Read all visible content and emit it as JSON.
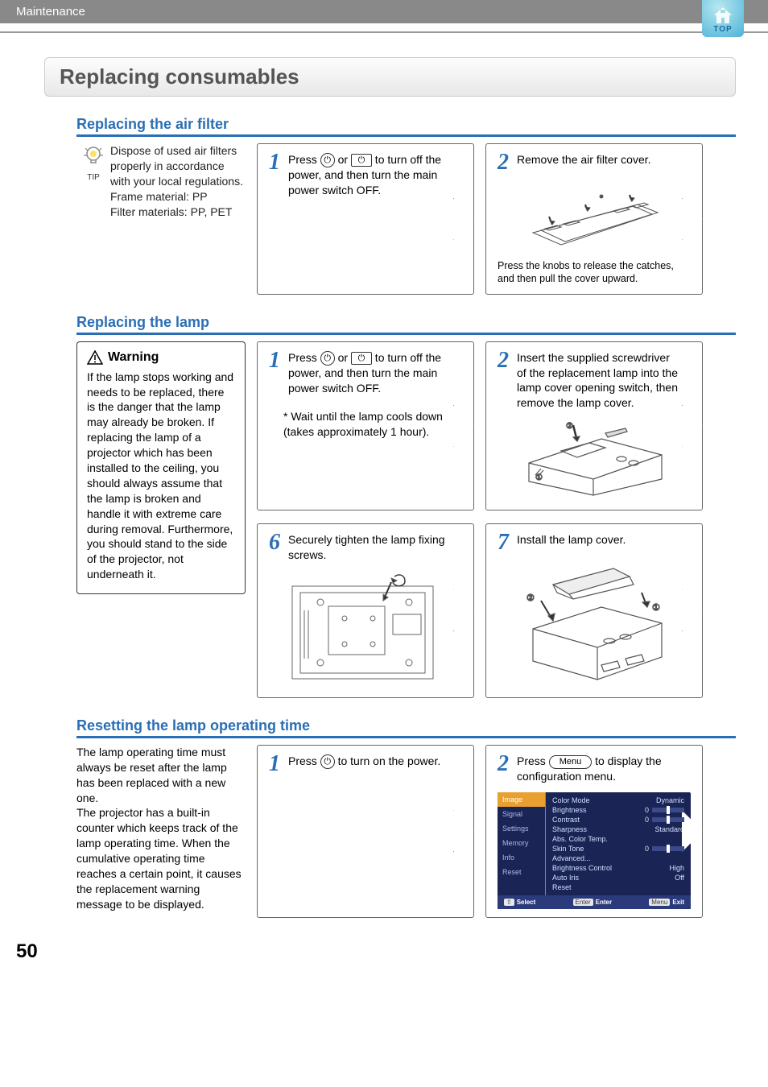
{
  "header": {
    "breadcrumb": "Maintenance",
    "badge_text": "TOP"
  },
  "main_title": "Replacing consumables",
  "page_number": "50",
  "colors": {
    "accent": "#2a6fb5",
    "header_bg": "#898989",
    "step_num": "#2a6fb5"
  },
  "air_filter": {
    "title": "Replacing the air filter",
    "tip_label": "TIP",
    "tip_text": "Dispose of used air filters properly in accordance with your local regulations.\nFrame material: PP\nFilter materials: PP, PET",
    "steps": [
      {
        "num": "1",
        "text_pre": "Press ",
        "text_mid": " or ",
        "text_post": " to turn off the power, and then turn the main power switch OFF."
      },
      {
        "num": "2",
        "text": "Remove the air filter cover.",
        "sub": "Press the knobs to release the catches, and then pull the cover upward."
      }
    ]
  },
  "lamp": {
    "title": "Replacing the lamp",
    "warning_title": "Warning",
    "warning_text": "If the lamp stops working and needs to be replaced, there is the danger that the lamp may already be broken. If replacing the lamp of a projector which has been installed to the ceiling, you should always assume that the lamp is broken and handle it with extreme care during removal. Furthermore, you should stand to the side of the projector, not underneath it.",
    "steps_row1": [
      {
        "num": "1",
        "text_pre": "Press ",
        "text_mid": " or ",
        "text_post": " to turn off the power, and then turn the main power switch OFF.",
        "note": "* Wait until the lamp cools down (takes approximately 1 hour)."
      },
      {
        "num": "2",
        "text": "Insert the supplied screwdriver of  the replacement lamp into the lamp cover opening switch, then remove the lamp cover."
      }
    ],
    "steps_row2": [
      {
        "num": "6",
        "text": "Securely tighten the lamp fixing screws."
      },
      {
        "num": "7",
        "text": "Install the lamp cover."
      }
    ]
  },
  "reset": {
    "title": "Resetting the lamp operating time",
    "desc": "The lamp operating time must always be reset after the lamp has been replaced with a new one.\nThe projector has a built-in counter which keeps track of the lamp operating time. When the cumulative operating time reaches a certain point, it causes the replacement warning message to be displayed.",
    "steps": [
      {
        "num": "1",
        "text_pre": "Press ",
        "text_post": " to turn on the power."
      },
      {
        "num": "2",
        "text_pre": "Press ",
        "btn_label": "Menu",
        "text_post": " to display the configuration menu."
      }
    ],
    "menu_screenshot": {
      "side": [
        "Image",
        "Signal",
        "Settings",
        "Memory",
        "Info",
        "Reset"
      ],
      "active_index": 0,
      "rows": [
        {
          "label": "Color Mode",
          "val": "Dynamic"
        },
        {
          "label": "Brightness",
          "val": "0",
          "slider": true
        },
        {
          "label": "Contrast",
          "val": "0",
          "slider": true
        },
        {
          "label": "Sharpness",
          "val": "Standard"
        },
        {
          "label": "Abs. Color Temp.",
          "val": ""
        },
        {
          "label": "Skin Tone",
          "val": "0",
          "slider": true
        },
        {
          "label": "Advanced...",
          "val": ""
        },
        {
          "label": "Brightness Control",
          "val": "High"
        },
        {
          "label": "Auto Iris",
          "val": "Off"
        },
        {
          "label": "Reset",
          "val": ""
        }
      ],
      "foot": {
        "left_btn": "⇧",
        "left": "Select",
        "mid_btn": "Enter",
        "mid": "Enter",
        "right_btn": "Menu",
        "right": "Exit"
      }
    }
  }
}
